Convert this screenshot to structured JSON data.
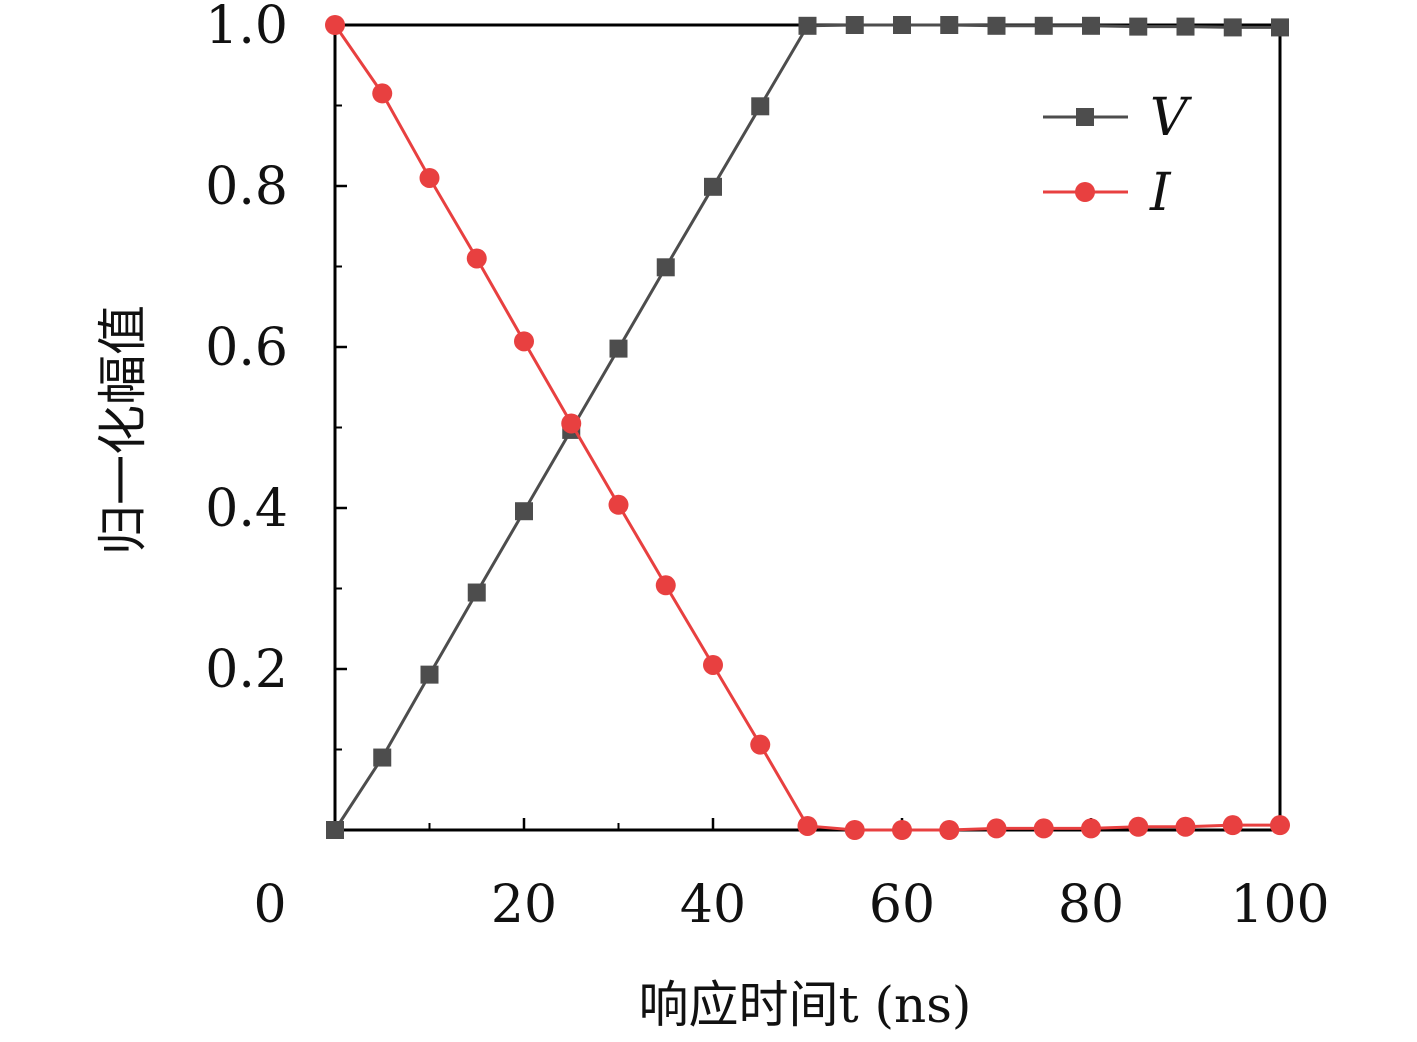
{
  "chart_data": {
    "type": "line",
    "xlabel": "响应时间t (ns)",
    "ylabel": "归一化幅值",
    "xlim": [
      0,
      100
    ],
    "ylim": [
      0,
      1.0
    ],
    "x_ticks": [
      0,
      20,
      40,
      60,
      80,
      100
    ],
    "x_tick_labels": [
      "0",
      "20",
      "40",
      "60",
      "80",
      "100"
    ],
    "y_ticks": [
      0.2,
      0.4,
      0.6,
      0.8,
      1.0
    ],
    "y_tick_labels": [
      "0.2",
      "0.4",
      "0.6",
      "0.8",
      "1.0"
    ],
    "grid": false,
    "legend_position": "top-right",
    "x": [
      0,
      5,
      10,
      15,
      20,
      25,
      30,
      35,
      40,
      45,
      50,
      55,
      60,
      65,
      70,
      75,
      80,
      85,
      90,
      95,
      100
    ],
    "series": [
      {
        "name": "V",
        "marker": "square",
        "color": "#4d4d4d",
        "values": [
          0.0,
          0.09,
          0.193,
          0.295,
          0.396,
          0.497,
          0.598,
          0.699,
          0.799,
          0.899,
          0.999,
          1.0,
          1.0,
          1.0,
          0.999,
          0.999,
          0.999,
          0.998,
          0.998,
          0.997,
          0.997
        ]
      },
      {
        "name": "I",
        "marker": "circle",
        "color": "#e84040",
        "values": [
          1.0,
          0.915,
          0.81,
          0.71,
          0.607,
          0.505,
          0.404,
          0.304,
          0.205,
          0.106,
          0.005,
          0.0,
          0.0,
          0.0,
          0.002,
          0.002,
          0.002,
          0.004,
          0.004,
          0.006,
          0.006
        ]
      }
    ]
  }
}
